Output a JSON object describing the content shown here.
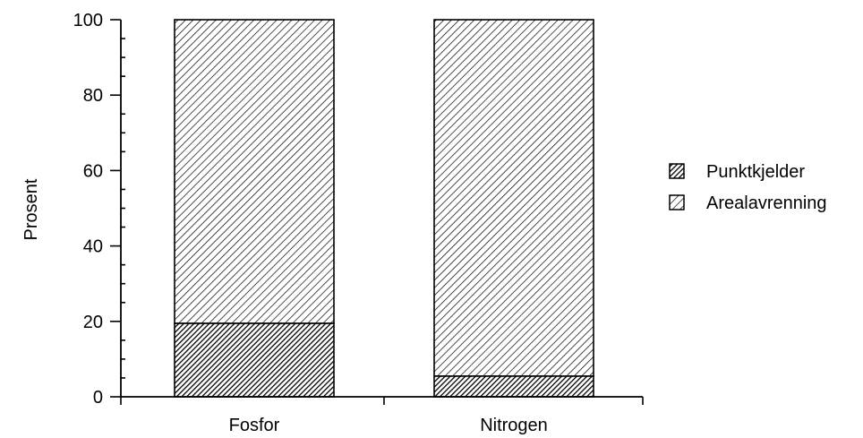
{
  "chart_data": {
    "type": "bar",
    "stacked": true,
    "categories": [
      "Fosfor",
      "Nitrogen"
    ],
    "series": [
      {
        "name": "Punktkjelder",
        "values": [
          19.5,
          5.5
        ],
        "pattern": "dense-hatch"
      },
      {
        "name": "Arealavrenning",
        "values": [
          80.5,
          94.5
        ],
        "pattern": "light-hatch"
      }
    ],
    "title": "",
    "xlabel": "",
    "ylabel": "Prosent",
    "ylim": [
      0,
      100
    ],
    "yticks": [
      0,
      20,
      40,
      60,
      80,
      100
    ],
    "ytick_labels": [
      "0",
      "20",
      "40",
      "60",
      "80",
      "100"
    ],
    "minor_tick_step": 5,
    "grid": false,
    "legend_position": "right"
  }
}
